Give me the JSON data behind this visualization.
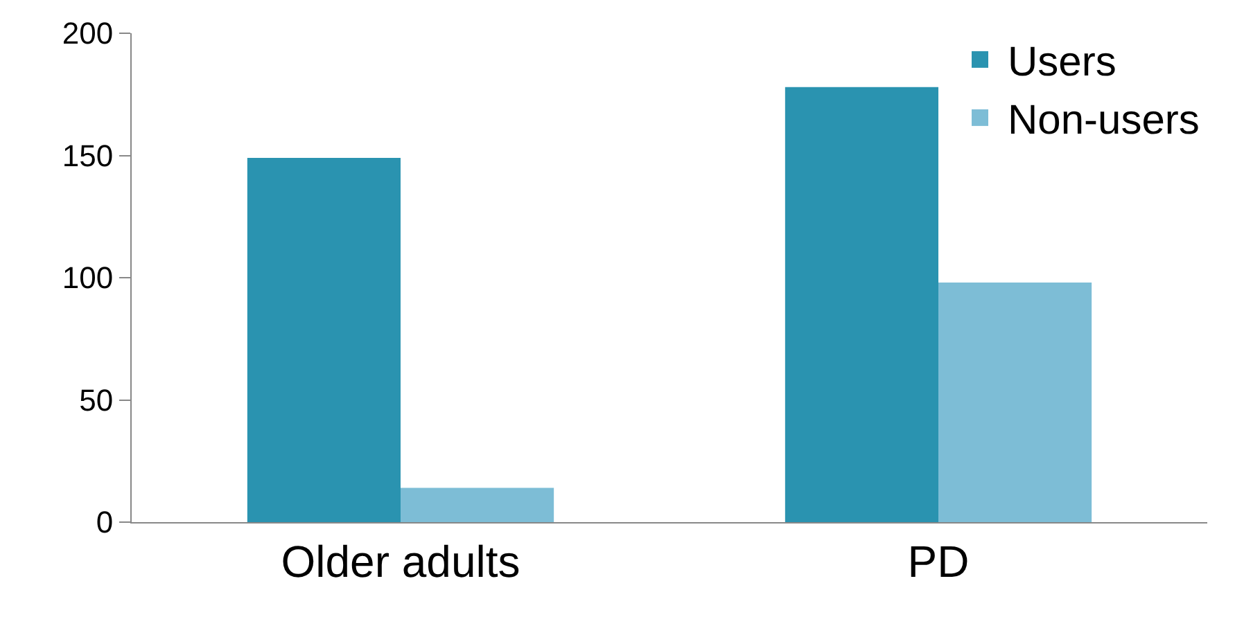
{
  "chart_data": {
    "type": "bar",
    "categories": [
      "Older adults",
      "PD"
    ],
    "series": [
      {
        "name": "Users",
        "color": "#2a93b0",
        "values": [
          149,
          178
        ]
      },
      {
        "name": "Non-users",
        "color": "#7dbdd6",
        "values": [
          14,
          98
        ]
      }
    ],
    "ylim": [
      0,
      200
    ],
    "yticks": [
      0,
      50,
      100,
      150,
      200
    ],
    "legend": "top right"
  }
}
